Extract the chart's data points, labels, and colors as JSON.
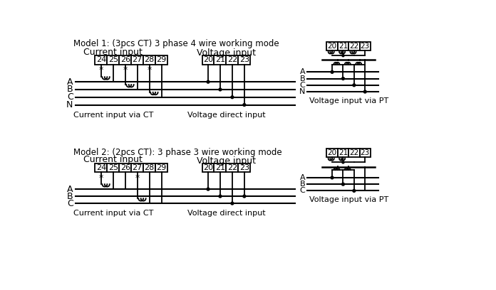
{
  "title1": "Model 1: (3pcs CT) 3 phase 4 wire working mode",
  "title2": "Model 2: (2pcs CT): 3 phase 3 wire working mode",
  "label_current_input": "Current input",
  "label_voltage_input": "Voltage input",
  "label_current_ct": "Current input via CT",
  "label_voltage_direct": "Voltage direct input",
  "label_voltage_pt": "Voltage input via PT",
  "terminals_current": [
    "24",
    "25",
    "26",
    "27",
    "28",
    "29"
  ],
  "terminals_voltage": [
    "20",
    "21",
    "22",
    "23"
  ],
  "phases_4wire": [
    "A",
    "B",
    "C",
    "N"
  ],
  "phases_3wire": [
    "A",
    "B",
    "C"
  ],
  "bg_color": "#ffffff",
  "line_color": "#000000",
  "font_size_title": 8.5,
  "font_size_label": 8,
  "font_size_terminal": 8,
  "lw": 1.3
}
